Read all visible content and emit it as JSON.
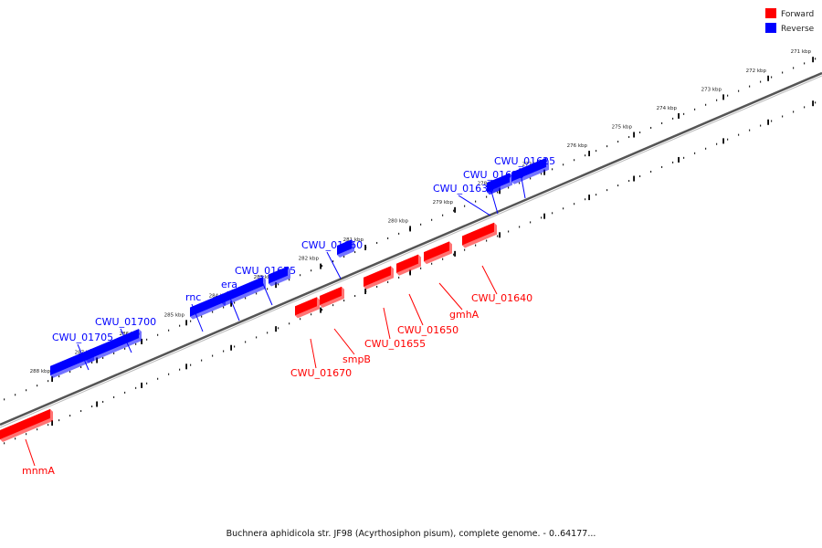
{
  "legend": {
    "forward": {
      "label": "Forward",
      "color": "#ff0000"
    },
    "reverse": {
      "label": "Reverse",
      "color": "#0000ff"
    }
  },
  "caption": "Buchnera aphidicola str. JF98 (Acyrthosiphon pisum), complete genome. - 0..64177...",
  "scale_unit": "kbp",
  "tick_labels": [
    "271 kbp",
    "272 kbp",
    "273 kbp",
    "274 kbp",
    "275 kbp",
    "276 kbp",
    "277 kbp",
    "278 kbp",
    "279 kbp",
    "280 kbp",
    "281 kbp",
    "282 kbp",
    "283 kbp",
    "284 kbp",
    "285 kbp",
    "286 kbp",
    "287 kbp",
    "288 kbp"
  ],
  "genes": [
    {
      "name": "CWU_01625",
      "strand": "reverse"
    },
    {
      "name": "CWU_01630",
      "strand": "reverse"
    },
    {
      "name": "CWU_01635",
      "strand": "reverse"
    },
    {
      "name": "CWU_01640",
      "strand": "forward"
    },
    {
      "name": "gmhA",
      "strand": "forward"
    },
    {
      "name": "CWU_01650",
      "strand": "forward"
    },
    {
      "name": "CWU_01655",
      "strand": "forward"
    },
    {
      "name": "CWU_01660",
      "strand": "reverse"
    },
    {
      "name": "smpB",
      "strand": "forward"
    },
    {
      "name": "CWU_01670",
      "strand": "forward"
    },
    {
      "name": "CWU_01675",
      "strand": "reverse"
    },
    {
      "name": "era",
      "strand": "reverse"
    },
    {
      "name": "rnc",
      "strand": "reverse"
    },
    {
      "name": "CWU_01700",
      "strand": "reverse"
    },
    {
      "name": "CWU_01705",
      "strand": "reverse"
    },
    {
      "name": "mnmA",
      "strand": "forward"
    }
  ]
}
